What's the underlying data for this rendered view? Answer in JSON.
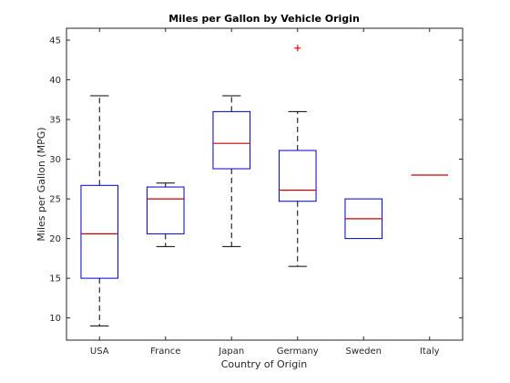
{
  "chart_data": {
    "type": "box",
    "title": "Miles per Gallon by Vehicle Origin",
    "xlabel": "Country of Origin",
    "ylabel": "Miles per Gallon (MPG)",
    "ylim": [
      7.2,
      46.5
    ],
    "yticks": [
      10,
      15,
      20,
      25,
      30,
      35,
      40,
      45
    ],
    "categories": [
      "USA",
      "France",
      "Japan",
      "Germany",
      "Sweden",
      "Italy"
    ],
    "boxes": [
      {
        "category": "USA",
        "whisker_low": 9,
        "q1": 15,
        "median": 20.6,
        "q3": 26.7,
        "whisker_high": 38,
        "outliers": []
      },
      {
        "category": "France",
        "whisker_low": 19,
        "q1": 20.6,
        "median": 25,
        "q3": 26.5,
        "whisker_high": 27,
        "outliers": []
      },
      {
        "category": "Japan",
        "whisker_low": 19,
        "q1": 28.8,
        "median": 32,
        "q3": 36,
        "whisker_high": 38,
        "outliers": []
      },
      {
        "category": "Germany",
        "whisker_low": 16.5,
        "q1": 24.7,
        "median": 26.1,
        "q3": 31.1,
        "whisker_high": 36,
        "outliers": [
          44
        ]
      },
      {
        "category": "Sweden",
        "whisker_low": 20,
        "q1": 20,
        "median": 22.5,
        "q3": 25,
        "whisker_high": 25,
        "outliers": []
      },
      {
        "category": "Italy",
        "whisker_low": 28,
        "q1": 28,
        "median": 28,
        "q3": 28,
        "whisker_high": 28,
        "outliers": []
      }
    ],
    "grid": false,
    "legend": "none",
    "colors": {
      "box": "#0000cc",
      "median": "#cc0000",
      "whisker": "#000000",
      "outlier": "#ff0000",
      "axis": "#262626"
    }
  }
}
